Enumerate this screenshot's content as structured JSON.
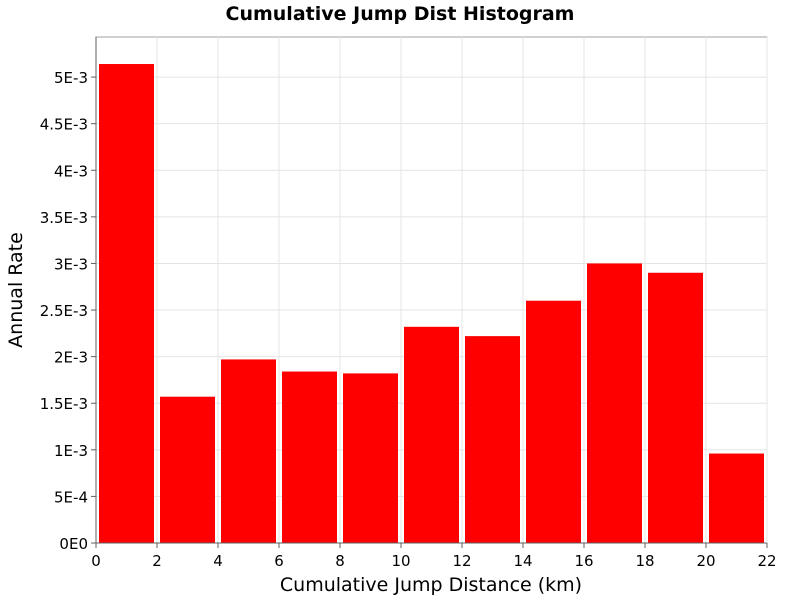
{
  "chart_data": {
    "type": "bar",
    "title": "Cumulative Jump Dist Histogram",
    "xlabel": "Cumulative Jump Distance (km)",
    "ylabel": "Annual Rate",
    "xlim": [
      0,
      22
    ],
    "ylim": [
      0,
      0.00543
    ],
    "grid": true,
    "bar_color": "#ff0000",
    "bins": [
      {
        "x0": 0,
        "x1": 2,
        "value": 0.00514
      },
      {
        "x0": 2,
        "x1": 4,
        "value": 0.00157
      },
      {
        "x0": 4,
        "x1": 6,
        "value": 0.00197
      },
      {
        "x0": 6,
        "x1": 8,
        "value": 0.00184
      },
      {
        "x0": 8,
        "x1": 10,
        "value": 0.00182
      },
      {
        "x0": 10,
        "x1": 12,
        "value": 0.00232
      },
      {
        "x0": 12,
        "x1": 14,
        "value": 0.00222
      },
      {
        "x0": 14,
        "x1": 16,
        "value": 0.0026
      },
      {
        "x0": 16,
        "x1": 18,
        "value": 0.003
      },
      {
        "x0": 18,
        "x1": 20,
        "value": 0.0029
      },
      {
        "x0": 20,
        "x1": 22,
        "value": 0.00096
      }
    ],
    "x_ticks": [
      {
        "value": 0,
        "label": "0"
      },
      {
        "value": 2,
        "label": "2"
      },
      {
        "value": 4,
        "label": "4"
      },
      {
        "value": 6,
        "label": "6"
      },
      {
        "value": 8,
        "label": "8"
      },
      {
        "value": 10,
        "label": "10"
      },
      {
        "value": 12,
        "label": "12"
      },
      {
        "value": 14,
        "label": "14"
      },
      {
        "value": 16,
        "label": "16"
      },
      {
        "value": 18,
        "label": "18"
      },
      {
        "value": 20,
        "label": "20"
      },
      {
        "value": 22,
        "label": "22"
      }
    ],
    "y_ticks": [
      {
        "value": 0,
        "label": "0E0"
      },
      {
        "value": 0.0005,
        "label": "5E-4"
      },
      {
        "value": 0.001,
        "label": "1E-3"
      },
      {
        "value": 0.0015,
        "label": "1.5E-3"
      },
      {
        "value": 0.002,
        "label": "2E-3"
      },
      {
        "value": 0.0025,
        "label": "2.5E-3"
      },
      {
        "value": 0.003,
        "label": "3E-3"
      },
      {
        "value": 0.0035,
        "label": "3.5E-3"
      },
      {
        "value": 0.004,
        "label": "4E-3"
      },
      {
        "value": 0.0045,
        "label": "4.5E-3"
      },
      {
        "value": 0.005,
        "label": "5E-3"
      }
    ]
  }
}
